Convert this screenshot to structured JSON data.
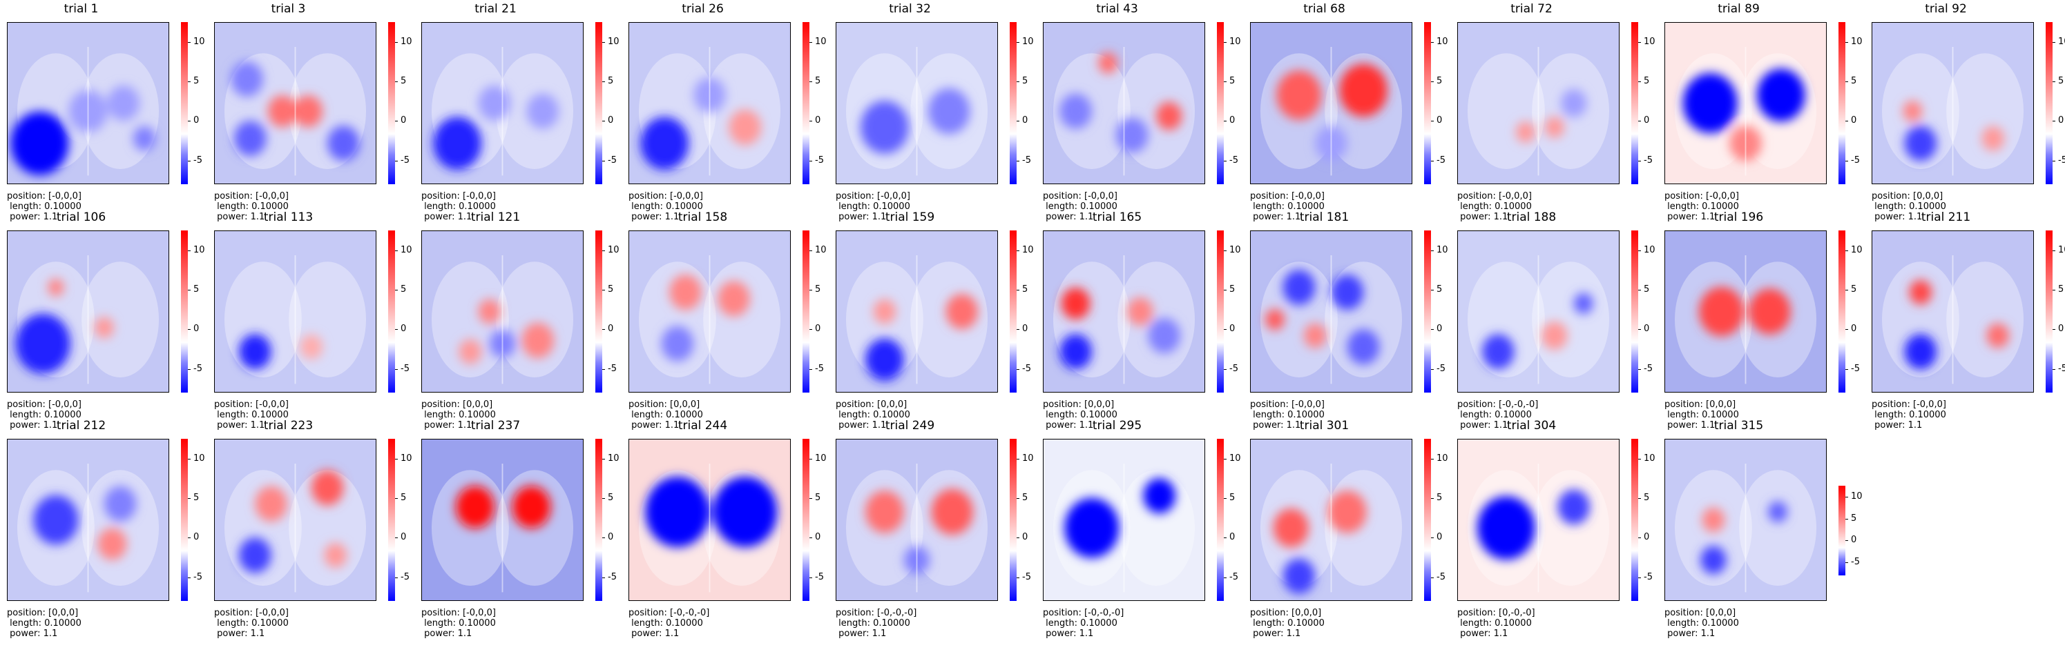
{
  "chart_data": [
    {
      "type": "heatmap",
      "title": "trial 1",
      "position": "position: [-0,0,0]",
      "length": " length: 0.10000",
      "power": " power: 1.1",
      "tint": "#c3c7f5",
      "ticks": [
        10,
        5,
        0,
        -5
      ],
      "cmin": -8,
      "cmax": 12.5,
      "blobs": [
        {
          "x": 0.2,
          "y": 0.75,
          "r": 0.18,
          "v": -8
        },
        {
          "x": 0.5,
          "y": 0.55,
          "r": 0.12,
          "v": -3
        },
        {
          "x": 0.72,
          "y": 0.5,
          "r": 0.1,
          "v": -3
        },
        {
          "x": 0.85,
          "y": 0.72,
          "r": 0.07,
          "v": -4
        }
      ]
    },
    {
      "type": "heatmap",
      "title": "trial 3",
      "position": "position: [-0,0,0]",
      "length": " length: 0.10000",
      "power": " power: 1.1",
      "tint": "#c3c7f5",
      "ticks": [
        10,
        5,
        0,
        -5
      ],
      "cmin": -8,
      "cmax": 12.5,
      "blobs": [
        {
          "x": 0.42,
          "y": 0.55,
          "r": 0.09,
          "v": 7
        },
        {
          "x": 0.58,
          "y": 0.55,
          "r": 0.09,
          "v": 7
        },
        {
          "x": 0.2,
          "y": 0.35,
          "r": 0.1,
          "v": -4
        },
        {
          "x": 0.22,
          "y": 0.72,
          "r": 0.1,
          "v": -5
        },
        {
          "x": 0.8,
          "y": 0.75,
          "r": 0.1,
          "v": -5
        }
      ]
    },
    {
      "type": "heatmap",
      "title": "trial 21",
      "position": "position: [-0,0,0]",
      "length": " length: 0.10000",
      "power": " power: 1.1",
      "tint": "#c6caf6",
      "ticks": [
        10,
        5,
        0,
        -5
      ],
      "cmin": -8,
      "cmax": 12.5,
      "blobs": [
        {
          "x": 0.22,
          "y": 0.75,
          "r": 0.15,
          "v": -7
        },
        {
          "x": 0.45,
          "y": 0.5,
          "r": 0.1,
          "v": -3
        },
        {
          "x": 0.75,
          "y": 0.55,
          "r": 0.1,
          "v": -3
        }
      ]
    },
    {
      "type": "heatmap",
      "title": "trial 26",
      "position": "position: [-0,0,0]",
      "length": " length: 0.10000",
      "power": " power: 1.1",
      "tint": "#c6caf6",
      "ticks": [
        10,
        5,
        0,
        -5
      ],
      "cmin": -8,
      "cmax": 12.5,
      "blobs": [
        {
          "x": 0.22,
          "y": 0.75,
          "r": 0.15,
          "v": -7
        },
        {
          "x": 0.72,
          "y": 0.65,
          "r": 0.1,
          "v": 5
        },
        {
          "x": 0.5,
          "y": 0.45,
          "r": 0.1,
          "v": -3
        }
      ]
    },
    {
      "type": "heatmap",
      "title": "trial 32",
      "position": "position: [-0,0,0]",
      "length": " length: 0.10000",
      "power": " power: 1.1",
      "tint": "#cdd1f7",
      "ticks": [
        10,
        5,
        0,
        -5
      ],
      "cmin": -8,
      "cmax": 12.5,
      "blobs": [
        {
          "x": 0.3,
          "y": 0.65,
          "r": 0.15,
          "v": -5
        },
        {
          "x": 0.7,
          "y": 0.55,
          "r": 0.13,
          "v": -4
        }
      ]
    },
    {
      "type": "heatmap",
      "title": "trial 43",
      "position": "position: [-0,0,0]",
      "length": " length: 0.10000",
      "power": " power: 1.1",
      "tint": "#c0c4f4",
      "ticks": [
        10,
        5,
        0,
        -5
      ],
      "cmin": -8,
      "cmax": 12.5,
      "blobs": [
        {
          "x": 0.4,
          "y": 0.25,
          "r": 0.06,
          "v": 7
        },
        {
          "x": 0.78,
          "y": 0.58,
          "r": 0.08,
          "v": 8
        },
        {
          "x": 0.2,
          "y": 0.55,
          "r": 0.1,
          "v": -4
        },
        {
          "x": 0.55,
          "y": 0.7,
          "r": 0.1,
          "v": -4
        }
      ]
    },
    {
      "type": "heatmap",
      "title": "trial 68",
      "position": "position: [-0,0,0]",
      "length": " length: 0.10000",
      "power": " power: 1.1",
      "tint": "#a9aff0",
      "ticks": [
        10,
        5,
        0,
        -5
      ],
      "cmin": -8,
      "cmax": 12.5,
      "blobs": [
        {
          "x": 0.3,
          "y": 0.45,
          "r": 0.14,
          "v": 8
        },
        {
          "x": 0.7,
          "y": 0.42,
          "r": 0.15,
          "v": 10
        },
        {
          "x": 0.5,
          "y": 0.75,
          "r": 0.1,
          "v": -3
        }
      ]
    },
    {
      "type": "heatmap",
      "title": "trial 72",
      "position": "position: [-0,0,0]",
      "length": " length: 0.10000",
      "power": " power: 1.1",
      "tint": "#c6caf6",
      "ticks": [
        10,
        5,
        0,
        -5
      ],
      "cmin": -8,
      "cmax": 12.5,
      "blobs": [
        {
          "x": 0.42,
          "y": 0.68,
          "r": 0.06,
          "v": 5
        },
        {
          "x": 0.6,
          "y": 0.65,
          "r": 0.06,
          "v": 5
        },
        {
          "x": 0.72,
          "y": 0.5,
          "r": 0.08,
          "v": -3
        }
      ]
    },
    {
      "type": "heatmap",
      "title": "trial 89",
      "position": "position: [-0,0,0]",
      "length": " length: 0.10000",
      "power": " power: 1.1",
      "tint": "#fde7e7",
      "ticks": [
        10,
        5,
        0,
        -5
      ],
      "cmin": -8,
      "cmax": 12.5,
      "blobs": [
        {
          "x": 0.28,
          "y": 0.5,
          "r": 0.17,
          "v": -9
        },
        {
          "x": 0.72,
          "y": 0.45,
          "r": 0.15,
          "v": -9
        },
        {
          "x": 0.5,
          "y": 0.75,
          "r": 0.1,
          "v": 6
        }
      ]
    },
    {
      "type": "heatmap",
      "title": "trial 92",
      "position": "position: [0,0,0]",
      "length": " length: 0.10000",
      "power": " power: 1.1",
      "tint": "#c6caf6",
      "ticks": [
        10,
        5,
        0,
        -5
      ],
      "cmin": -8,
      "cmax": 12.5,
      "blobs": [
        {
          "x": 0.25,
          "y": 0.55,
          "r": 0.06,
          "v": 6
        },
        {
          "x": 0.3,
          "y": 0.75,
          "r": 0.1,
          "v": -6
        },
        {
          "x": 0.75,
          "y": 0.72,
          "r": 0.07,
          "v": 5
        }
      ]
    },
    {
      "type": "heatmap",
      "title": "trial 106",
      "position": "position: [-0,0,0]",
      "length": " length: 0.10000",
      "power": " power: 1.1",
      "tint": "#c3c7f5",
      "ticks": [
        10,
        5,
        0,
        -5
      ],
      "cmin": -8,
      "cmax": 12.5,
      "blobs": [
        {
          "x": 0.22,
          "y": 0.7,
          "r": 0.17,
          "v": -7
        },
        {
          "x": 0.3,
          "y": 0.35,
          "r": 0.05,
          "v": 6
        },
        {
          "x": 0.6,
          "y": 0.6,
          "r": 0.06,
          "v": 5
        }
      ]
    },
    {
      "type": "heatmap",
      "title": "trial 113",
      "position": "position: [-0,0,0]",
      "length": " length: 0.10000",
      "power": " power: 1.1",
      "tint": "#c6caf6",
      "ticks": [
        10,
        5,
        0,
        -5
      ],
      "cmin": -8,
      "cmax": 12.5,
      "blobs": [
        {
          "x": 0.25,
          "y": 0.75,
          "r": 0.1,
          "v": -7
        },
        {
          "x": 0.6,
          "y": 0.72,
          "r": 0.07,
          "v": 4
        }
      ]
    },
    {
      "type": "heatmap",
      "title": "trial 121",
      "position": "position: [0,0,0]",
      "length": " length: 0.10000",
      "power": " power: 1.1",
      "tint": "#c0c4f4",
      "ticks": [
        10,
        5,
        0,
        -5
      ],
      "cmin": -8,
      "cmax": 12.5,
      "blobs": [
        {
          "x": 0.42,
          "y": 0.5,
          "r": 0.07,
          "v": 6
        },
        {
          "x": 0.72,
          "y": 0.68,
          "r": 0.1,
          "v": 6
        },
        {
          "x": 0.3,
          "y": 0.75,
          "r": 0.07,
          "v": 5
        },
        {
          "x": 0.5,
          "y": 0.7,
          "r": 0.08,
          "v": -4
        }
      ]
    },
    {
      "type": "heatmap",
      "title": "trial 158",
      "position": "position: [0,0,0]",
      "length": " length: 0.10000",
      "power": " power: 1.1",
      "tint": "#c6caf6",
      "ticks": [
        10,
        5,
        0,
        -5
      ],
      "cmin": -8,
      "cmax": 12.5,
      "blobs": [
        {
          "x": 0.35,
          "y": 0.38,
          "r": 0.1,
          "v": 6
        },
        {
          "x": 0.65,
          "y": 0.42,
          "r": 0.1,
          "v": 6
        },
        {
          "x": 0.3,
          "y": 0.7,
          "r": 0.1,
          "v": -4
        }
      ]
    },
    {
      "type": "heatmap",
      "title": "trial 159",
      "position": "position: [0,0,0]",
      "length": " length: 0.10000",
      "power": " power: 1.1",
      "tint": "#c6caf6",
      "ticks": [
        10,
        5,
        0,
        -5
      ],
      "cmin": -8,
      "cmax": 12.5,
      "blobs": [
        {
          "x": 0.78,
          "y": 0.5,
          "r": 0.1,
          "v": 7
        },
        {
          "x": 0.3,
          "y": 0.5,
          "r": 0.07,
          "v": 5
        },
        {
          "x": 0.3,
          "y": 0.8,
          "r": 0.12,
          "v": -7
        }
      ]
    },
    {
      "type": "heatmap",
      "title": "trial 165",
      "position": "position: [0,0,0]",
      "length": " length: 0.10000",
      "power": " power: 1.1",
      "tint": "#c0c4f4",
      "ticks": [
        10,
        5,
        0,
        -5
      ],
      "cmin": -8,
      "cmax": 12.5,
      "blobs": [
        {
          "x": 0.2,
          "y": 0.45,
          "r": 0.09,
          "v": 10
        },
        {
          "x": 0.2,
          "y": 0.75,
          "r": 0.1,
          "v": -7
        },
        {
          "x": 0.6,
          "y": 0.5,
          "r": 0.08,
          "v": 6
        },
        {
          "x": 0.75,
          "y": 0.65,
          "r": 0.1,
          "v": -4
        }
      ]
    },
    {
      "type": "heatmap",
      "title": "trial 181",
      "position": "position: [-0,0,0]",
      "length": " length: 0.10000",
      "power": " power: 1.1",
      "tint": "#b9bef3",
      "ticks": [
        10,
        5,
        0,
        -5
      ],
      "cmin": -8,
      "cmax": 12.5,
      "blobs": [
        {
          "x": 0.15,
          "y": 0.55,
          "r": 0.06,
          "v": 8
        },
        {
          "x": 0.3,
          "y": 0.35,
          "r": 0.1,
          "v": -6
        },
        {
          "x": 0.6,
          "y": 0.38,
          "r": 0.1,
          "v": -6
        },
        {
          "x": 0.4,
          "y": 0.65,
          "r": 0.07,
          "v": 6
        },
        {
          "x": 0.7,
          "y": 0.72,
          "r": 0.1,
          "v": -5
        }
      ]
    },
    {
      "type": "heatmap",
      "title": "trial 188",
      "position": "position: [-0,-0,-0]",
      "length": " length: 0.10000",
      "power": " power: 1.1",
      "tint": "#cdd1f7",
      "ticks": [
        10,
        5,
        0,
        -5
      ],
      "cmin": -8,
      "cmax": 12.5,
      "blobs": [
        {
          "x": 0.25,
          "y": 0.75,
          "r": 0.1,
          "v": -6
        },
        {
          "x": 0.6,
          "y": 0.65,
          "r": 0.08,
          "v": 5
        },
        {
          "x": 0.78,
          "y": 0.45,
          "r": 0.06,
          "v": -5
        }
      ]
    },
    {
      "type": "heatmap",
      "title": "trial 196",
      "position": "position: [0,0,0]",
      "length": " length: 0.10000",
      "power": " power: 1.1",
      "tint": "#a9aff0",
      "ticks": [
        10,
        5,
        0,
        -5
      ],
      "cmin": -8,
      "cmax": 12.5,
      "blobs": [
        {
          "x": 0.35,
          "y": 0.5,
          "r": 0.14,
          "v": 9
        },
        {
          "x": 0.65,
          "y": 0.5,
          "r": 0.13,
          "v": 9
        }
      ]
    },
    {
      "type": "heatmap",
      "title": "trial 211",
      "position": "position: [-0,0,0]",
      "length": " length: 0.10000",
      "power": " power: 1.1",
      "tint": "#c0c4f4",
      "ticks": [
        10,
        5,
        0,
        -5
      ],
      "cmin": -8,
      "cmax": 12.5,
      "blobs": [
        {
          "x": 0.3,
          "y": 0.38,
          "r": 0.07,
          "v": 9
        },
        {
          "x": 0.78,
          "y": 0.65,
          "r": 0.07,
          "v": 7
        },
        {
          "x": 0.3,
          "y": 0.75,
          "r": 0.1,
          "v": -7
        }
      ]
    },
    {
      "type": "heatmap",
      "title": "trial 212",
      "position": "position: [0,0,0]",
      "length": " length: 0.10000",
      "power": " power: 1.1",
      "tint": "#c6caf6",
      "ticks": [
        10,
        5,
        0,
        -5
      ],
      "cmin": -8,
      "cmax": 12.5,
      "blobs": [
        {
          "x": 0.3,
          "y": 0.5,
          "r": 0.14,
          "v": -6
        },
        {
          "x": 0.65,
          "y": 0.65,
          "r": 0.09,
          "v": 6
        },
        {
          "x": 0.7,
          "y": 0.4,
          "r": 0.1,
          "v": -4
        }
      ]
    },
    {
      "type": "heatmap",
      "title": "trial 223",
      "position": "position: [-0,0,0]",
      "length": " length: 0.10000",
      "power": " power: 1.1",
      "tint": "#c6caf6",
      "ticks": [
        10,
        5,
        0,
        -5
      ],
      "cmin": -8,
      "cmax": 12.5,
      "blobs": [
        {
          "x": 0.35,
          "y": 0.4,
          "r": 0.1,
          "v": 6
        },
        {
          "x": 0.7,
          "y": 0.3,
          "r": 0.1,
          "v": 8
        },
        {
          "x": 0.25,
          "y": 0.72,
          "r": 0.1,
          "v": -6
        },
        {
          "x": 0.75,
          "y": 0.72,
          "r": 0.07,
          "v": 5
        }
      ]
    },
    {
      "type": "heatmap",
      "title": "trial 237",
      "position": "position: [-0,0,0]",
      "length": " length: 0.10000",
      "power": " power: 1.1",
      "tint": "#9aa1ee",
      "ticks": [
        10,
        5,
        0,
        -5
      ],
      "cmin": -8,
      "cmax": 12.5,
      "blobs": [
        {
          "x": 0.33,
          "y": 0.42,
          "r": 0.12,
          "v": 12
        },
        {
          "x": 0.68,
          "y": 0.42,
          "r": 0.12,
          "v": 12
        }
      ]
    },
    {
      "type": "heatmap",
      "title": "trial 244",
      "position": "position: [-0,-0,-0]",
      "length": " length: 0.10000",
      "power": " power: 1.1",
      "tint": "#fbdada",
      "ticks": [
        10,
        5,
        0,
        -5
      ],
      "cmin": -8,
      "cmax": 12.5,
      "blobs": [
        {
          "x": 0.3,
          "y": 0.45,
          "r": 0.2,
          "v": -9
        },
        {
          "x": 0.72,
          "y": 0.45,
          "r": 0.2,
          "v": -9
        }
      ]
    },
    {
      "type": "heatmap",
      "title": "trial 249",
      "position": "position: [-0,-0,-0]",
      "length": " length: 0.10000",
      "power": " power: 1.1",
      "tint": "#c0c4f4",
      "ticks": [
        10,
        5,
        0,
        -5
      ],
      "cmin": -8,
      "cmax": 12.5,
      "blobs": [
        {
          "x": 0.3,
          "y": 0.45,
          "r": 0.12,
          "v": 7
        },
        {
          "x": 0.72,
          "y": 0.45,
          "r": 0.13,
          "v": 8
        },
        {
          "x": 0.5,
          "y": 0.75,
          "r": 0.08,
          "v": -4
        }
      ]
    },
    {
      "type": "heatmap",
      "title": "trial 295",
      "position": "position: [-0,-0,-0]",
      "length": " length: 0.10000",
      "power": " power: 1.1",
      "tint": "#eceefb",
      "ticks": [
        10,
        5,
        0,
        -5
      ],
      "cmin": -8,
      "cmax": 12.5,
      "blobs": [
        {
          "x": 0.3,
          "y": 0.55,
          "r": 0.17,
          "v": -9
        },
        {
          "x": 0.72,
          "y": 0.35,
          "r": 0.1,
          "v": -8
        }
      ]
    },
    {
      "type": "heatmap",
      "title": "trial 301",
      "position": "position: [0,0,0]",
      "length": " length: 0.10000",
      "power": " power: 1.1",
      "tint": "#c6caf6",
      "ticks": [
        10,
        5,
        0,
        -5
      ],
      "cmin": -8,
      "cmax": 12.5,
      "blobs": [
        {
          "x": 0.25,
          "y": 0.55,
          "r": 0.11,
          "v": 8
        },
        {
          "x": 0.6,
          "y": 0.45,
          "r": 0.12,
          "v": 7
        },
        {
          "x": 0.3,
          "y": 0.85,
          "r": 0.1,
          "v": -6
        }
      ]
    },
    {
      "type": "heatmap",
      "title": "trial 304",
      "position": "position: [0,-0,-0]",
      "length": " length: 0.10000",
      "power": " power: 1.1",
      "tint": "#fdeaea",
      "ticks": [
        10,
        5,
        0,
        -5
      ],
      "cmin": -8,
      "cmax": 12.5,
      "blobs": [
        {
          "x": 0.3,
          "y": 0.55,
          "r": 0.18,
          "v": -9
        },
        {
          "x": 0.72,
          "y": 0.42,
          "r": 0.1,
          "v": -6
        }
      ]
    },
    {
      "type": "heatmap",
      "title": "trial 315",
      "position": "position: [0,0,0]",
      "length": " length: 0.10000",
      "power": " power: 1.1",
      "tint": "#c6caf6",
      "ticks": [
        10,
        5,
        0,
        -5
      ],
      "cmin": -8,
      "cmax": 12.5,
      "blobs": [
        {
          "x": 0.3,
          "y": 0.5,
          "r": 0.07,
          "v": 6
        },
        {
          "x": 0.7,
          "y": 0.45,
          "r": 0.06,
          "v": -5
        },
        {
          "x": 0.3,
          "y": 0.75,
          "r": 0.08,
          "v": -6
        }
      ]
    }
  ]
}
